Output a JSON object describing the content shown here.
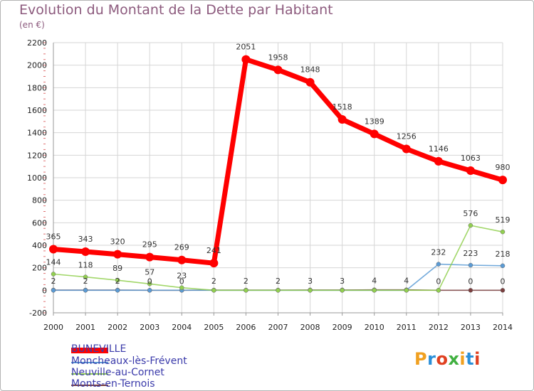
{
  "chart_data": {
    "type": "line",
    "title": "Evolution du Montant de la Dette par Habitant",
    "unit_label": "(en €)",
    "xlabel": "",
    "ylabel": "",
    "categories": [
      "2000",
      "2001",
      "2002",
      "2003",
      "2004",
      "2005",
      "2006",
      "2007",
      "2008",
      "2009",
      "2010",
      "2011",
      "2012",
      "2013",
      "2014"
    ],
    "ylim": [
      -200,
      2200
    ],
    "yticks": [
      -200,
      0,
      200,
      400,
      600,
      800,
      1000,
      1200,
      1400,
      1600,
      1800,
      2000,
      2200
    ],
    "grid": true,
    "legend_position": "bottom-left",
    "series": [
      {
        "name": "BUNEVILLE",
        "color": "#ff0000",
        "values": [
          365,
          343,
          320,
          295,
          269,
          241,
          2051,
          1958,
          1848,
          1518,
          1389,
          1256,
          1146,
          1063,
          980
        ]
      },
      {
        "name": "Moncheaux-lès-Frévent",
        "color": "#5b9bd5",
        "values": [
          0,
          0,
          0,
          0,
          0,
          0,
          0,
          0,
          0,
          0,
          0,
          0,
          232,
          223,
          218
        ]
      },
      {
        "name": "Neuville-au-Cornet",
        "color": "#92d050",
        "values": [
          144,
          118,
          89,
          57,
          23,
          0,
          0,
          0,
          0,
          0,
          0,
          0,
          0,
          576,
          519
        ]
      },
      {
        "name": "Monts-en-Ternois",
        "color": "#7b3f3f",
        "values": [
          2,
          2,
          2,
          0,
          0,
          2,
          2,
          2,
          3,
          3,
          4,
          4,
          0,
          0,
          0
        ]
      }
    ],
    "point_labels": [
      {
        "series": 0,
        "labels": [
          "365",
          "343",
          "320",
          "295",
          "269",
          "241",
          "2051",
          "1958",
          "1848",
          "1518",
          "1389",
          "1256",
          "1146",
          "1063",
          "980"
        ]
      },
      {
        "series": 1,
        "labels": [
          "",
          "",
          "",
          "",
          "",
          "",
          "",
          "",
          "",
          "",
          "",
          "",
          "232",
          "223",
          "218"
        ]
      },
      {
        "series": 2,
        "labels": [
          "144",
          "118",
          "89",
          "57",
          "23",
          "",
          "",
          "",
          "",
          "",
          "",
          "",
          "",
          "576",
          "519"
        ]
      },
      {
        "series": 3,
        "labels": [
          "2",
          "2",
          "2",
          "0",
          "0",
          "2",
          "2",
          "2",
          "3",
          "3",
          "4",
          "4",
          "0",
          "0",
          "0"
        ]
      }
    ]
  },
  "legend": [
    {
      "label": "BUNEVILLE",
      "color": "#ff0000"
    },
    {
      "label": "Moncheaux-lès-Frévent",
      "color": "#5b9bd5"
    },
    {
      "label": "Neuville-au-Cornet",
      "color": "#92d050"
    },
    {
      "label": "Monts-en-Ternois",
      "color": "#7b3f3f"
    }
  ],
  "logo": {
    "text": "Proxiti",
    "colors": [
      "#f0a020",
      "#2a8fd8",
      "#e04020",
      "#40b040"
    ]
  }
}
